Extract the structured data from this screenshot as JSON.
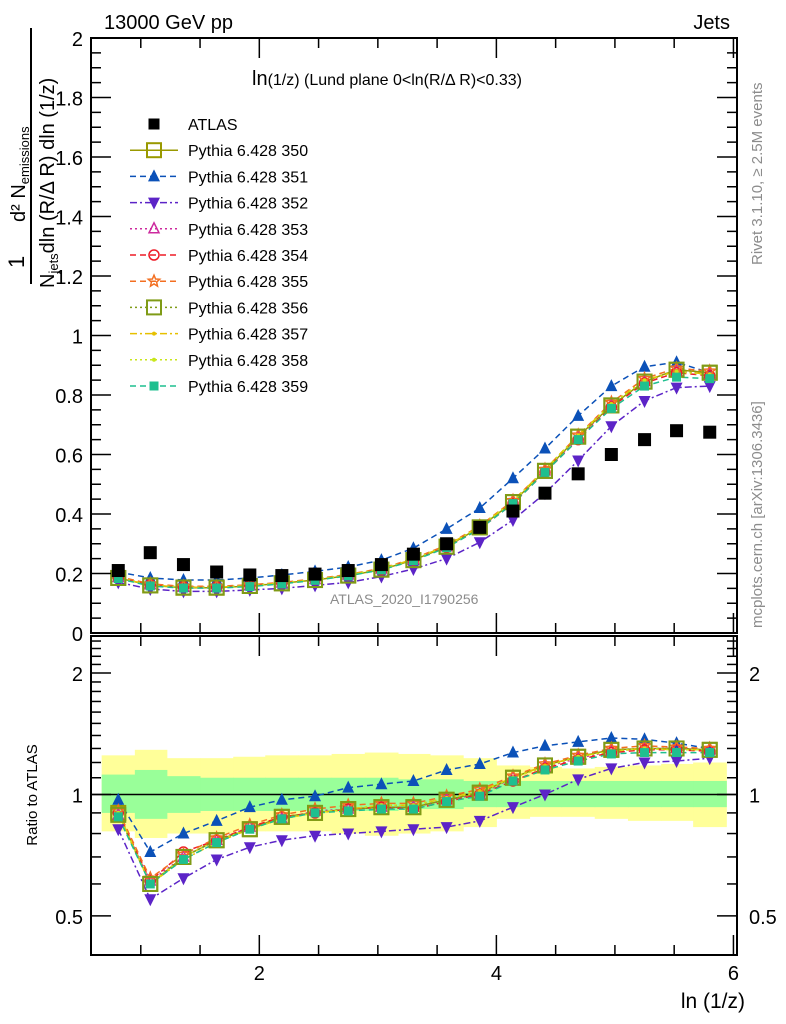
{
  "header": {
    "left": "13000 GeV pp",
    "right": "Jets"
  },
  "side_labels": {
    "rivet": "Rivet 3.1.10, ≥ 2.5M events",
    "mcplots": "mcplots.cern.ch [arXiv:1306.3436]"
  },
  "watermark": "ATLAS_2020_I1790256",
  "chart_data": [
    {
      "type": "scatter",
      "panel": "main",
      "title": "ln(1/z) (Lund plane 0<ln(R/Δ R)<0.33)",
      "title_prefix": "ln",
      "title_rest": "(1/z) (Lund plane 0<ln(R/Δ R)<0.33)",
      "ylabel_numerator": "d² N",
      "ylabel_numerator_sub": "emissions",
      "ylabel_denominator": "dln (R/Δ R) dln (1/z)",
      "ylabel_denominator_prefix": "N",
      "ylabel_denominator_sub": "jets",
      "ylabel_one": "1",
      "xlabel": "ln (1/z)",
      "xlim": [
        0.58,
        6.03
      ],
      "ylim": [
        0,
        2
      ],
      "yticks": [
        "0",
        "0.2",
        "0.4",
        "0.6",
        "0.8",
        "1",
        "1.2",
        "1.4",
        "1.6",
        "1.8",
        "2"
      ],
      "legend_position": "top-left",
      "x": [
        0.81,
        1.08,
        1.36,
        1.64,
        1.92,
        2.19,
        2.47,
        2.75,
        3.03,
        3.3,
        3.58,
        3.86,
        4.14,
        4.41,
        4.69,
        4.97,
        5.25,
        5.52,
        5.8
      ],
      "series": [
        {
          "name": "ATLAS",
          "color": "#000000",
          "marker": "square-filled",
          "line": "none",
          "values": [
            0.21,
            0.27,
            0.23,
            0.205,
            0.195,
            0.193,
            0.198,
            0.21,
            0.23,
            0.265,
            0.3,
            0.355,
            0.41,
            0.47,
            0.535,
            0.6,
            0.65,
            0.68,
            0.675
          ]
        },
        {
          "name": "Pythia 6.428 350",
          "color": "#999900",
          "marker": "square-open",
          "line": "solid",
          "values": [
            0.185,
            0.16,
            0.152,
            0.152,
            0.158,
            0.167,
            0.178,
            0.193,
            0.213,
            0.245,
            0.29,
            0.355,
            0.44,
            0.545,
            0.66,
            0.765,
            0.845,
            0.885,
            0.875
          ]
        },
        {
          "name": "Pythia 6.428 351",
          "color": "#0b51b8",
          "marker": "triangle-up-filled",
          "line": "dashed",
          "values": [
            0.205,
            0.185,
            0.178,
            0.178,
            0.185,
            0.195,
            0.207,
            0.222,
            0.245,
            0.285,
            0.35,
            0.42,
            0.52,
            0.62,
            0.73,
            0.83,
            0.895,
            0.91,
            0.875
          ]
        },
        {
          "name": "Pythia 6.428 352",
          "color": "#5c24c7",
          "marker": "triangle-down-filled",
          "line": "dashdot",
          "values": [
            0.17,
            0.148,
            0.14,
            0.14,
            0.145,
            0.15,
            0.16,
            0.17,
            0.19,
            0.215,
            0.25,
            0.305,
            0.38,
            0.47,
            0.58,
            0.695,
            0.78,
            0.825,
            0.83
          ]
        },
        {
          "name": "Pythia 6.428 353",
          "color": "#cc2a9e",
          "marker": "triangle-up-open",
          "line": "dotted",
          "values": [
            0.187,
            0.162,
            0.155,
            0.155,
            0.16,
            0.168,
            0.18,
            0.195,
            0.215,
            0.247,
            0.29,
            0.355,
            0.44,
            0.545,
            0.655,
            0.765,
            0.845,
            0.88,
            0.87
          ]
        },
        {
          "name": "Pythia 6.428 354",
          "color": "#ee1b27",
          "marker": "circle-open",
          "line": "dashed",
          "values": [
            0.187,
            0.162,
            0.155,
            0.155,
            0.16,
            0.168,
            0.18,
            0.195,
            0.213,
            0.245,
            0.288,
            0.35,
            0.435,
            0.54,
            0.65,
            0.76,
            0.84,
            0.875,
            0.865
          ]
        },
        {
          "name": "Pythia 6.428 355",
          "color": "#f36f21",
          "marker": "star-open",
          "line": "dashed",
          "values": [
            0.19,
            0.165,
            0.157,
            0.157,
            0.162,
            0.17,
            0.182,
            0.197,
            0.217,
            0.25,
            0.295,
            0.36,
            0.445,
            0.55,
            0.665,
            0.775,
            0.855,
            0.89,
            0.88
          ]
        },
        {
          "name": "Pythia 6.428 356",
          "color": "#7f9b16",
          "marker": "square-open",
          "line": "dotted",
          "values": [
            0.185,
            0.16,
            0.153,
            0.153,
            0.158,
            0.167,
            0.178,
            0.193,
            0.213,
            0.245,
            0.29,
            0.355,
            0.44,
            0.545,
            0.66,
            0.765,
            0.845,
            0.885,
            0.875
          ]
        },
        {
          "name": "Pythia 6.428 357",
          "color": "#e6c000",
          "marker": "dot",
          "line": "dashdot",
          "values": [
            0.186,
            0.161,
            0.154,
            0.154,
            0.159,
            0.168,
            0.179,
            0.195,
            0.215,
            0.248,
            0.293,
            0.358,
            0.443,
            0.55,
            0.665,
            0.77,
            0.85,
            0.88,
            0.87
          ]
        },
        {
          "name": "Pythia 6.428 358",
          "color": "#c8e61a",
          "marker": "dot",
          "line": "dotted",
          "values": [
            0.186,
            0.161,
            0.154,
            0.154,
            0.159,
            0.168,
            0.179,
            0.195,
            0.215,
            0.247,
            0.292,
            0.357,
            0.442,
            0.548,
            0.662,
            0.768,
            0.848,
            0.878,
            0.868
          ]
        },
        {
          "name": "Pythia 6.428 359",
          "color": "#1fbf8f",
          "marker": "square-filled-small",
          "line": "dashed",
          "values": [
            0.183,
            0.158,
            0.151,
            0.151,
            0.156,
            0.165,
            0.177,
            0.192,
            0.212,
            0.243,
            0.287,
            0.35,
            0.435,
            0.54,
            0.65,
            0.755,
            0.83,
            0.86,
            0.855
          ]
        }
      ]
    },
    {
      "type": "scatter",
      "panel": "ratio",
      "ylabel": "Ratio to ATLAS",
      "xlabel": "ln (1/z)",
      "xlim": [
        0.58,
        6.03
      ],
      "ylim": [
        0.4,
        2.47
      ],
      "yscale": "log",
      "yticks": [
        "0.5",
        "1",
        "2"
      ],
      "xticks": [
        "2",
        "4",
        "6"
      ],
      "band_edges": [
        0.67,
        0.95,
        1.22,
        1.5,
        1.78,
        2.05,
        2.33,
        2.61,
        2.89,
        3.17,
        3.44,
        3.72,
        4.0,
        4.28,
        4.55,
        4.83,
        5.11,
        5.39,
        5.66,
        5.94
      ],
      "band_inner": [
        [
          0.9,
          1.12
        ],
        [
          0.87,
          1.15
        ],
        [
          0.9,
          1.11
        ],
        [
          0.91,
          1.1
        ],
        [
          0.91,
          1.1
        ],
        [
          0.91,
          1.1
        ],
        [
          0.91,
          1.1
        ],
        [
          0.91,
          1.1
        ],
        [
          0.91,
          1.1
        ],
        [
          0.92,
          1.09
        ],
        [
          0.92,
          1.09
        ],
        [
          0.93,
          1.08
        ],
        [
          0.93,
          1.08
        ],
        [
          0.93,
          1.08
        ],
        [
          0.93,
          1.08
        ],
        [
          0.93,
          1.08
        ],
        [
          0.93,
          1.08
        ],
        [
          0.93,
          1.08
        ],
        [
          0.93,
          1.08
        ]
      ],
      "band_outer": [
        [
          0.81,
          1.25
        ],
        [
          0.78,
          1.29
        ],
        [
          0.8,
          1.23
        ],
        [
          0.8,
          1.23
        ],
        [
          0.81,
          1.24
        ],
        [
          0.81,
          1.25
        ],
        [
          0.81,
          1.25
        ],
        [
          0.8,
          1.26
        ],
        [
          0.79,
          1.27
        ],
        [
          0.8,
          1.26
        ],
        [
          0.81,
          1.25
        ],
        [
          0.83,
          1.23
        ],
        [
          0.87,
          1.18
        ],
        [
          0.88,
          1.17
        ],
        [
          0.88,
          1.16
        ],
        [
          0.87,
          1.17
        ],
        [
          0.86,
          1.18
        ],
        [
          0.86,
          1.19
        ],
        [
          0.83,
          1.2
        ]
      ],
      "series": [
        {
          "name": "Pythia 6.428 350",
          "values": [
            0.9,
            0.6,
            0.7,
            0.77,
            0.82,
            0.88,
            0.9,
            0.92,
            0.93,
            0.93,
            0.97,
            1.01,
            1.1,
            1.18,
            1.24,
            1.29,
            1.3,
            1.3,
            1.29
          ]
        },
        {
          "name": "Pythia 6.428 351",
          "values": [
            0.97,
            0.72,
            0.8,
            0.86,
            0.93,
            0.97,
            0.99,
            1.04,
            1.06,
            1.08,
            1.15,
            1.19,
            1.27,
            1.32,
            1.35,
            1.38,
            1.37,
            1.34,
            1.3
          ]
        },
        {
          "name": "Pythia 6.428 352",
          "values": [
            0.82,
            0.55,
            0.62,
            0.69,
            0.74,
            0.77,
            0.79,
            0.8,
            0.81,
            0.82,
            0.83,
            0.86,
            0.93,
            1.0,
            1.09,
            1.16,
            1.2,
            1.21,
            1.23
          ]
        },
        {
          "name": "Pythia 6.428 353",
          "values": [
            0.89,
            0.61,
            0.7,
            0.77,
            0.83,
            0.87,
            0.91,
            0.92,
            0.93,
            0.93,
            0.97,
            1.0,
            1.1,
            1.17,
            1.23,
            1.28,
            1.3,
            1.3,
            1.29
          ]
        },
        {
          "name": "Pythia 6.428 354",
          "values": [
            0.9,
            0.61,
            0.72,
            0.77,
            0.83,
            0.88,
            0.9,
            0.92,
            0.93,
            0.92,
            0.96,
            1.0,
            1.08,
            1.16,
            1.22,
            1.27,
            1.29,
            1.29,
            1.28
          ]
        },
        {
          "name": "Pythia 6.428 355",
          "values": [
            0.91,
            0.62,
            0.71,
            0.78,
            0.84,
            0.89,
            0.92,
            0.94,
            0.95,
            0.95,
            0.99,
            1.03,
            1.11,
            1.19,
            1.25,
            1.3,
            1.32,
            1.31,
            1.3
          ]
        },
        {
          "name": "Pythia 6.428 356",
          "values": [
            0.89,
            0.6,
            0.7,
            0.77,
            0.82,
            0.88,
            0.9,
            0.92,
            0.93,
            0.93,
            0.97,
            1.01,
            1.1,
            1.18,
            1.24,
            1.29,
            1.3,
            1.3,
            1.29
          ]
        },
        {
          "name": "Pythia 6.428 357",
          "values": [
            0.9,
            0.6,
            0.69,
            0.76,
            0.82,
            0.87,
            0.9,
            0.92,
            0.94,
            0.94,
            0.98,
            1.02,
            1.1,
            1.18,
            1.24,
            1.28,
            1.3,
            1.29,
            1.29
          ]
        },
        {
          "name": "Pythia 6.428 358",
          "values": [
            0.9,
            0.6,
            0.7,
            0.77,
            0.82,
            0.87,
            0.9,
            0.92,
            0.94,
            0.94,
            0.98,
            1.01,
            1.1,
            1.17,
            1.24,
            1.28,
            1.3,
            1.29,
            1.29
          ]
        },
        {
          "name": "Pythia 6.428 359",
          "values": [
            0.88,
            0.6,
            0.69,
            0.76,
            0.82,
            0.87,
            0.9,
            0.91,
            0.92,
            0.92,
            0.96,
            0.99,
            1.08,
            1.15,
            1.21,
            1.26,
            1.27,
            1.27,
            1.27
          ]
        }
      ]
    }
  ]
}
